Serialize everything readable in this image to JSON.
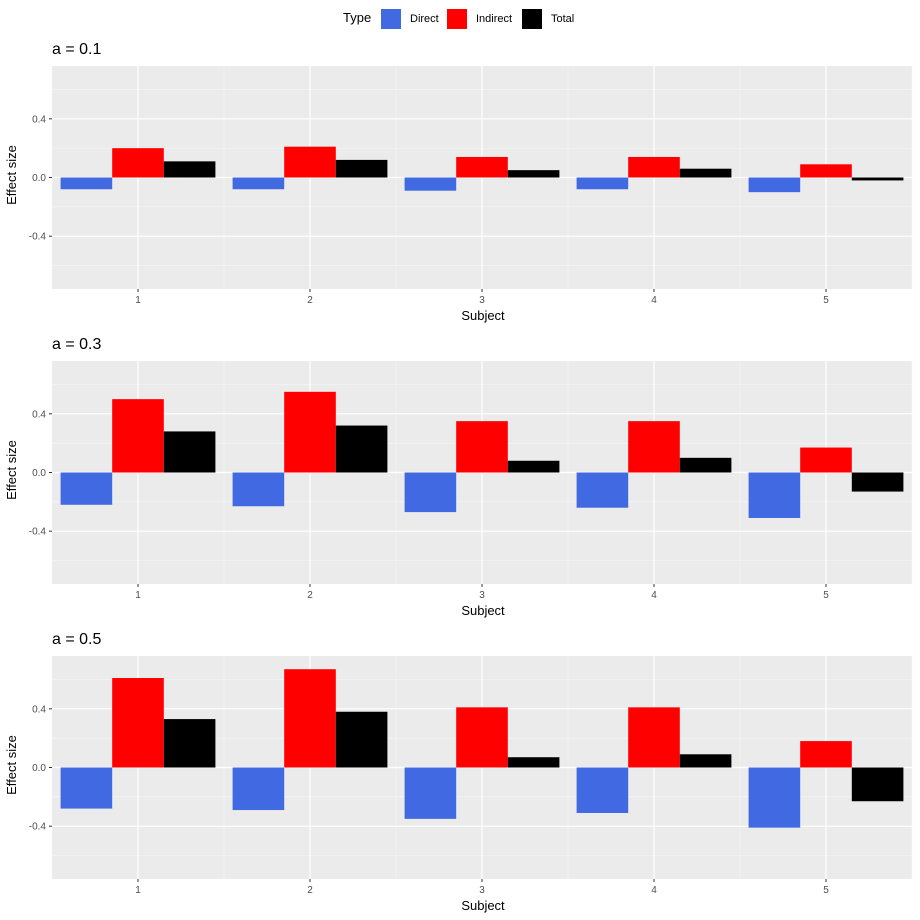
{
  "legend": {
    "title": "Type",
    "items": [
      {
        "label": "Direct",
        "color": "#4169E1"
      },
      {
        "label": "Indirect",
        "color": "#FF0000"
      },
      {
        "label": "Total",
        "color": "#000000"
      }
    ]
  },
  "chart_data": [
    {
      "type": "bar",
      "title": "a = 0.1",
      "xlabel": "Subject",
      "ylabel": "Effect size",
      "categories": [
        "1",
        "2",
        "3",
        "4",
        "5"
      ],
      "yticks": [
        "-0.4",
        "0.0",
        "0.4"
      ],
      "ylim": [
        -0.76,
        0.76
      ],
      "grid": true,
      "series": [
        {
          "name": "Direct",
          "values": [
            -0.08,
            -0.08,
            -0.09,
            -0.08,
            -0.1
          ]
        },
        {
          "name": "Indirect",
          "values": [
            0.2,
            0.21,
            0.14,
            0.14,
            0.09
          ]
        },
        {
          "name": "Total",
          "values": [
            0.11,
            0.12,
            0.05,
            0.06,
            -0.02
          ]
        }
      ]
    },
    {
      "type": "bar",
      "title": "a = 0.3",
      "xlabel": "Subject",
      "ylabel": "Effect size",
      "categories": [
        "1",
        "2",
        "3",
        "4",
        "5"
      ],
      "yticks": [
        "-0.4",
        "0.0",
        "0.4"
      ],
      "ylim": [
        -0.76,
        0.76
      ],
      "grid": true,
      "series": [
        {
          "name": "Direct",
          "values": [
            -0.22,
            -0.23,
            -0.27,
            -0.24,
            -0.31
          ]
        },
        {
          "name": "Indirect",
          "values": [
            0.5,
            0.55,
            0.35,
            0.35,
            0.17
          ]
        },
        {
          "name": "Total",
          "values": [
            0.28,
            0.32,
            0.08,
            0.1,
            -0.13
          ]
        }
      ]
    },
    {
      "type": "bar",
      "title": "a = 0.5",
      "xlabel": "Subject",
      "ylabel": "Effect size",
      "categories": [
        "1",
        "2",
        "3",
        "4",
        "5"
      ],
      "yticks": [
        "-0.4",
        "0.0",
        "0.4"
      ],
      "ylim": [
        -0.76,
        0.76
      ],
      "grid": true,
      "series": [
        {
          "name": "Direct",
          "values": [
            -0.28,
            -0.29,
            -0.35,
            -0.31,
            -0.41
          ]
        },
        {
          "name": "Indirect",
          "values": [
            0.61,
            0.67,
            0.41,
            0.41,
            0.18
          ]
        },
        {
          "name": "Total",
          "values": [
            0.33,
            0.38,
            0.07,
            0.09,
            -0.23
          ]
        }
      ]
    }
  ]
}
